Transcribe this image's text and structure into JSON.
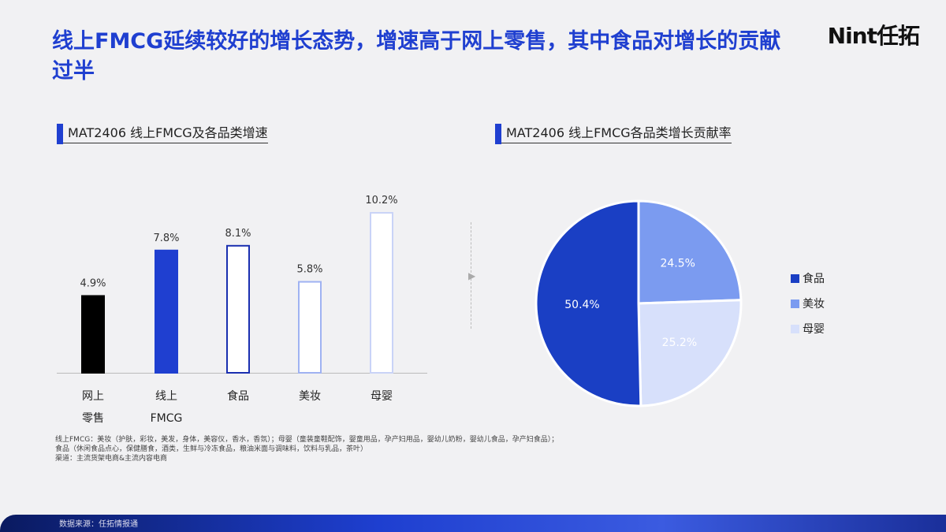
{
  "title": "线上FMCG延续较好的增长态势，增速高于网上零售，其中食品对增长的贡献过半",
  "logo": "Nint任拓",
  "footnotes": [
    "线上FMCG：美妆（护肤，彩妆，美发，身体，美容仪，香水，香氛）；母婴（童装童鞋配饰，婴童用品，孕产妇用品，婴幼儿奶粉，婴幼儿食品，孕产妇食品）；",
    "食品（休闲食品点心，保健膳食，酒类，生鲜与冷冻食品，粮油米面与调味料，饮料与乳品，茶叶）",
    "渠道：主流货架电商&主流内容电商"
  ],
  "source": "数据来源：任拓情报通",
  "chart_data": [
    {
      "type": "bar",
      "title": "MAT2406 线上FMCG及各品类增速",
      "categories": [
        "网上\n零售",
        "线上\nFMCG",
        "食品",
        "美妆",
        "母婴"
      ],
      "values": [
        4.9,
        7.8,
        8.1,
        5.8,
        10.2
      ],
      "labels": [
        "4.9%",
        "7.8%",
        "8.1%",
        "5.8%",
        "10.2%"
      ],
      "styles": [
        {
          "fill": "#000000",
          "stroke": "#000000"
        },
        {
          "fill": "#1f3fd0",
          "stroke": "#1f3fd0"
        },
        {
          "fill": "#ffffff",
          "stroke": "#1a2fb0"
        },
        {
          "fill": "#ffffff",
          "stroke": "#9fb2f2"
        },
        {
          "fill": "#ffffff",
          "stroke": "#c9d3f7"
        }
      ],
      "grid": false
    },
    {
      "type": "pie",
      "title": "MAT2406 线上FMCG各品类增长贡献率",
      "slices": [
        {
          "name": "食品",
          "value": 50.4,
          "label": "50.4%",
          "color": "#1a3fc4"
        },
        {
          "name": "美妆",
          "value": 24.5,
          "label": "24.5%",
          "color": "#7b9bf0"
        },
        {
          "name": "母婴",
          "value": 25.2,
          "label": "25.2%",
          "color": "#d7e0fb"
        }
      ],
      "legend": "right"
    }
  ]
}
